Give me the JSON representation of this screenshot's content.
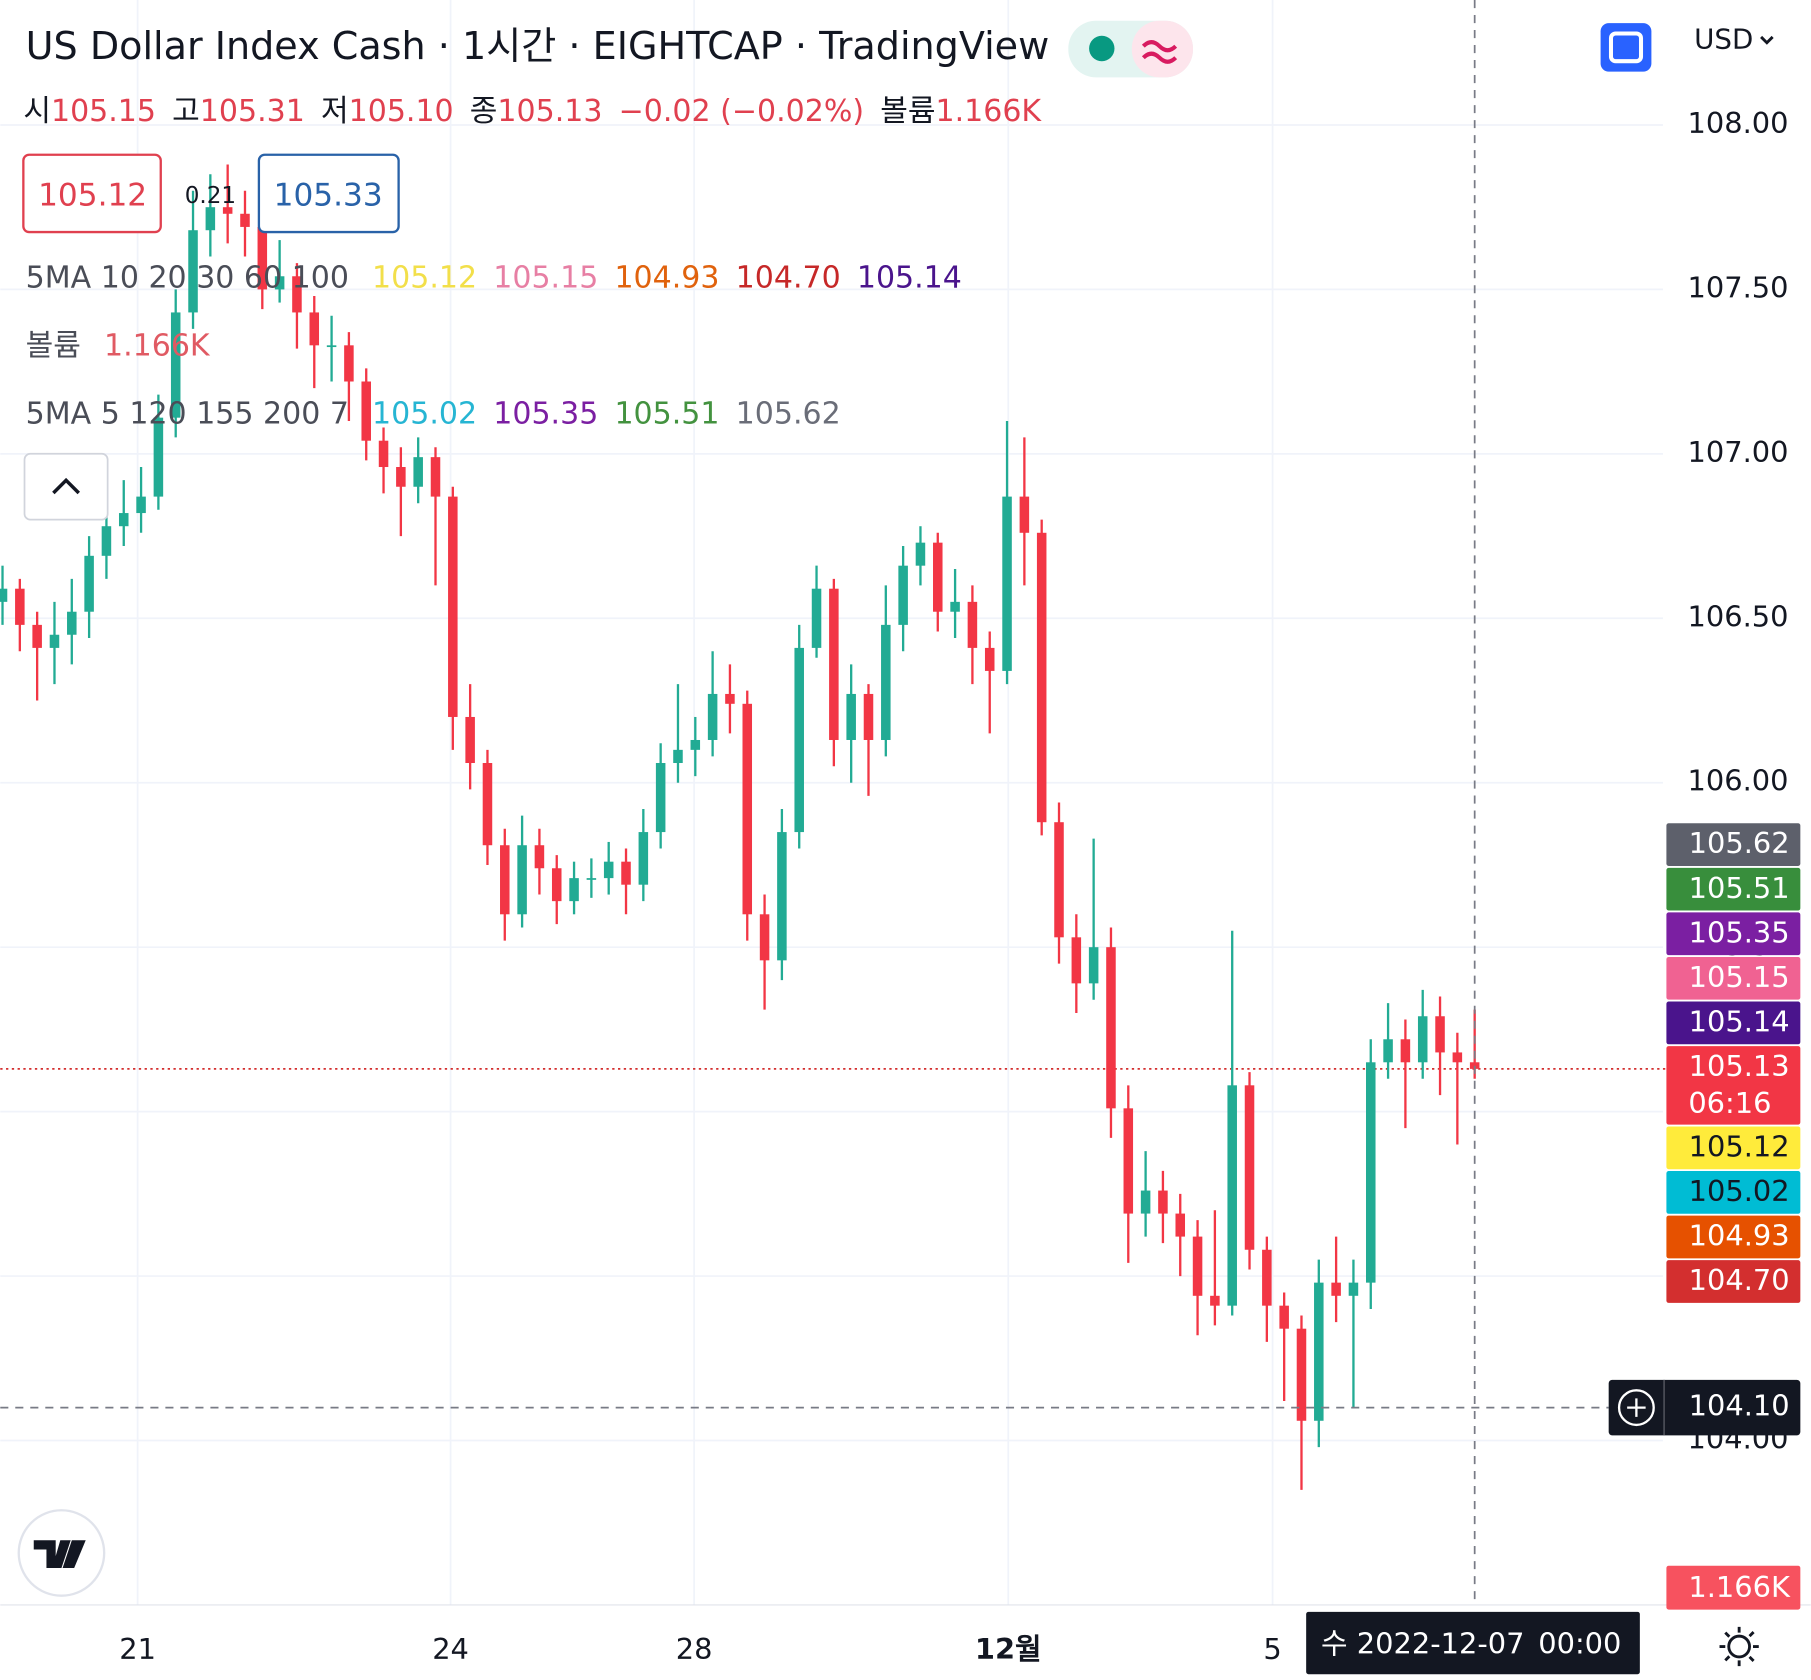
{
  "chart_data": {
    "type": "candlestick",
    "title": "US Dollar Index Cash · 1시간 · EIGHTCAP · TradingView",
    "currency": "USD",
    "ohlc_legend": [
      {
        "label": "시",
        "value": "105.15"
      },
      {
        "label": "고",
        "value": "105.31"
      },
      {
        "label": "저",
        "value": "105.10"
      },
      {
        "label": "종",
        "value": "105.13"
      }
    ],
    "change": "−0.02 (−0.02%)",
    "volume_label": "볼륨",
    "volume": "1.166K",
    "quick_trade": {
      "sell": "105.12",
      "spread": "0.21",
      "buy": "105.33"
    },
    "indicators": [
      {
        "name": "5MA 10 20 30 60 100",
        "values": [
          {
            "text": "105.12",
            "color": "#f2df4a"
          },
          {
            "text": "105.15",
            "color": "#e77fa4"
          },
          {
            "text": "104.93",
            "color": "#e0620d"
          },
          {
            "text": "104.70",
            "color": "#c62828"
          },
          {
            "text": "105.14",
            "color": "#4a148c"
          }
        ]
      },
      {
        "name": "볼륨",
        "values": [
          {
            "text": "1.166K",
            "color": "#e05a63"
          }
        ]
      },
      {
        "name": "5MA 5 120 155 200 7",
        "values": [
          {
            "text": "105.02",
            "color": "#26b5d3"
          },
          {
            "text": "105.35",
            "color": "#7b1fa2"
          },
          {
            "text": "105.51",
            "color": "#43923f"
          },
          {
            "text": "105.62",
            "color": "#6a6d78"
          }
        ]
      }
    ],
    "open": [
      106.55,
      106.59,
      106.48,
      106.41,
      106.45,
      106.52,
      106.69,
      106.78,
      106.82,
      106.87,
      107.11,
      107.43,
      107.68,
      107.75,
      107.73,
      107.69,
      107.5,
      107.54,
      107.43,
      107.33,
      107.33,
      107.22,
      107.04,
      106.96,
      106.9,
      106.99,
      106.87,
      106.2,
      106.06,
      105.81,
      105.6,
      105.81,
      105.74,
      105.64,
      105.71,
      105.71,
      105.76,
      105.69,
      105.85,
      106.06,
      106.1,
      106.13,
      106.27,
      106.24,
      105.6,
      105.46,
      105.85,
      106.41,
      106.59,
      106.13,
      106.27,
      106.13,
      106.48,
      106.66,
      106.73,
      106.52,
      106.55,
      106.41,
      106.34,
      106.87,
      106.76,
      105.88,
      105.53,
      105.39,
      105.5,
      105.01,
      104.69,
      104.76,
      104.69,
      104.62,
      104.44,
      104.41,
      105.08,
      104.58,
      104.41,
      104.34,
      104.06,
      104.48,
      104.44,
      104.48,
      105.15,
      105.22,
      105.15,
      105.29,
      105.18,
      105.15
    ],
    "high": [
      106.66,
      106.62,
      106.52,
      106.55,
      106.62,
      106.75,
      106.85,
      106.92,
      106.96,
      107.18,
      107.5,
      107.8,
      107.85,
      107.88,
      107.8,
      107.72,
      107.65,
      107.58,
      107.48,
      107.42,
      107.37,
      107.26,
      107.08,
      107.02,
      107.05,
      107.02,
      106.9,
      106.3,
      106.1,
      105.86,
      105.9,
      105.86,
      105.78,
      105.76,
      105.77,
      105.82,
      105.8,
      105.92,
      106.12,
      106.3,
      106.2,
      106.4,
      106.36,
      106.28,
      105.66,
      105.92,
      106.48,
      106.66,
      106.62,
      106.36,
      106.3,
      106.6,
      106.72,
      106.78,
      106.76,
      106.65,
      106.6,
      106.46,
      107.1,
      107.05,
      106.8,
      105.94,
      105.6,
      105.83,
      105.56,
      105.08,
      104.88,
      104.82,
      104.75,
      104.67,
      104.7,
      105.55,
      105.12,
      104.62,
      104.45,
      104.38,
      104.55,
      104.62,
      104.55,
      105.22,
      105.33,
      105.28,
      105.37,
      105.35,
      105.24,
      105.31
    ],
    "low": [
      106.48,
      106.4,
      106.25,
      106.3,
      106.36,
      106.44,
      106.62,
      106.72,
      106.76,
      106.83,
      107.05,
      107.38,
      107.6,
      107.64,
      107.6,
      107.44,
      107.46,
      107.32,
      107.2,
      107.22,
      107.1,
      106.98,
      106.88,
      106.75,
      106.85,
      106.6,
      106.1,
      105.98,
      105.75,
      105.52,
      105.56,
      105.66,
      105.57,
      105.6,
      105.65,
      105.66,
      105.6,
      105.64,
      105.8,
      106.0,
      106.02,
      106.08,
      106.15,
      105.52,
      105.31,
      105.4,
      105.8,
      106.38,
      106.05,
      106.0,
      105.96,
      106.08,
      106.4,
      106.6,
      106.46,
      106.44,
      106.3,
      106.15,
      106.3,
      106.6,
      105.84,
      105.45,
      105.3,
      105.34,
      104.92,
      104.54,
      104.62,
      104.6,
      104.5,
      104.32,
      104.35,
      104.38,
      104.52,
      104.3,
      104.12,
      103.85,
      103.98,
      104.36,
      104.1,
      104.4,
      105.1,
      104.95,
      105.1,
      105.05,
      104.9,
      105.1
    ],
    "close": [
      106.59,
      106.48,
      106.41,
      106.45,
      106.52,
      106.69,
      106.78,
      106.82,
      106.87,
      107.11,
      107.43,
      107.68,
      107.75,
      107.73,
      107.69,
      107.5,
      107.54,
      107.43,
      107.33,
      107.33,
      107.22,
      107.04,
      106.96,
      106.9,
      106.99,
      106.87,
      106.2,
      106.06,
      105.81,
      105.6,
      105.81,
      105.74,
      105.64,
      105.71,
      105.71,
      105.76,
      105.69,
      105.85,
      106.06,
      106.1,
      106.13,
      106.27,
      106.24,
      105.6,
      105.46,
      105.85,
      106.41,
      106.59,
      106.13,
      106.27,
      106.13,
      106.48,
      106.66,
      106.73,
      106.52,
      106.55,
      106.41,
      106.34,
      106.87,
      106.76,
      105.88,
      105.53,
      105.39,
      105.5,
      105.01,
      104.69,
      104.76,
      104.69,
      104.62,
      104.44,
      104.41,
      105.08,
      104.58,
      104.41,
      104.34,
      104.06,
      104.48,
      104.44,
      104.48,
      105.15,
      105.22,
      105.15,
      105.29,
      105.18,
      105.15,
      105.13
    ],
    "up_color": "#22ab94",
    "down_color": "#f23645",
    "last_line_color": "#d32f2f",
    "xlim": [
      -0.13,
      95.87
    ],
    "ylim": [
      103.5,
      108.38
    ],
    "yticks": [
      {
        "value": 108,
        "label": "108.00"
      },
      {
        "value": 107.5,
        "label": "107.50"
      },
      {
        "value": 107,
        "label": "107.00"
      },
      {
        "value": 106.5,
        "label": "106.50"
      },
      {
        "value": 106,
        "label": "106.00"
      },
      {
        "value": 105.5,
        "label": "105.50"
      },
      {
        "value": 105,
        "label": "105.00"
      },
      {
        "value": 104.5,
        "label": "104.50"
      },
      {
        "value": 104,
        "label": "104.00"
      }
    ],
    "xticks": [
      {
        "value": 7.8,
        "label": "21"
      },
      {
        "value": 25.87,
        "label": "24"
      },
      {
        "value": 39.93,
        "label": "28"
      },
      {
        "value": 58.07,
        "label": "12월"
      },
      {
        "value": 73.33,
        "label": "5"
      }
    ],
    "grid": true,
    "price_badges": [
      {
        "label": "105.62",
        "color": "#5d606b",
        "text_color": "#ffffff"
      },
      {
        "label": "105.51",
        "color": "#388e3c",
        "text_color": "#ffffff"
      },
      {
        "label": "105.35",
        "color": "#7b1fa2",
        "text_color": "#ffffff"
      },
      {
        "label": "105.15",
        "color": "#f06292",
        "text_color": "#ffffff"
      },
      {
        "label": "105.14",
        "color": "#4a148c",
        "text_color": "#ffffff"
      },
      {
        "label": "105.13",
        "sub": "06:16",
        "color": "#f23645",
        "text_color": "#ffffff"
      },
      {
        "label": "105.12",
        "color": "#ffeb3b",
        "text_color": "#131722"
      },
      {
        "label": "105.02",
        "color": "#00bcd4",
        "text_color": "#131722"
      },
      {
        "label": "104.93",
        "color": "#e65100",
        "text_color": "#ffffff"
      },
      {
        "label": "104.70",
        "color": "#d32f2f",
        "text_color": "#ffffff"
      }
    ],
    "crosshair": {
      "price": 104.1,
      "price_label": "104.10",
      "index": 85,
      "date_label": "수 2022-12-07",
      "time_label": "00:00"
    },
    "volume_badge": {
      "label": "1.166K",
      "color": "#f7525f"
    }
  }
}
